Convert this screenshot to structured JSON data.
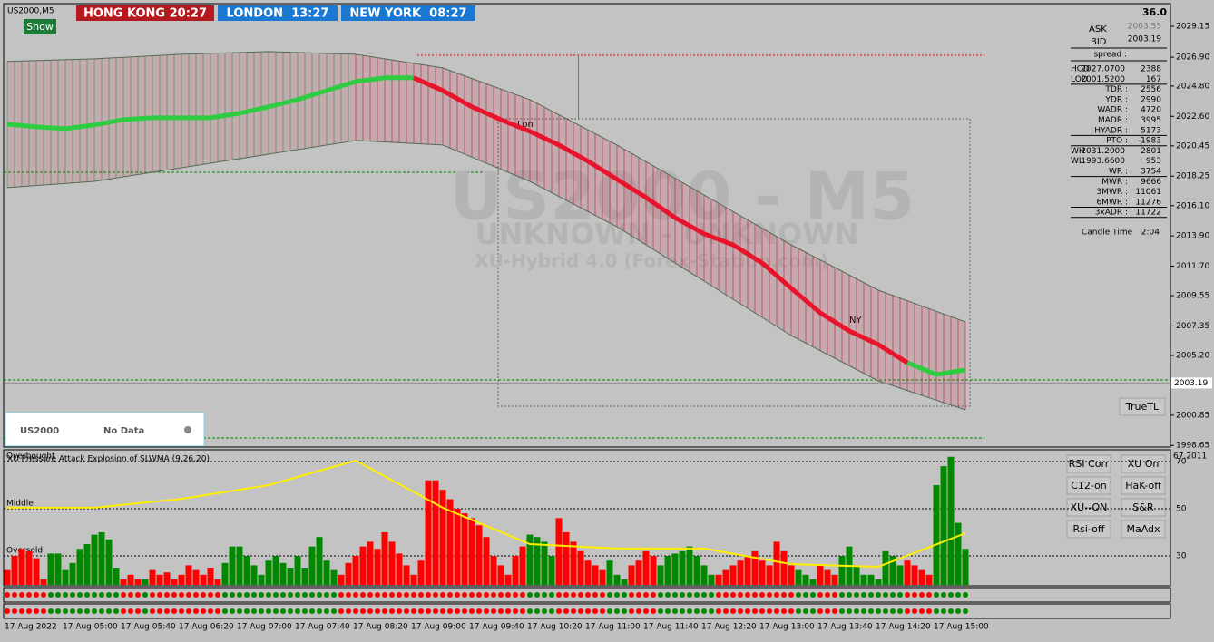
{
  "header": {
    "symbol": "US2000,M5",
    "show_button": "Show",
    "sessions": [
      "HONG KONG 20:27",
      "LONDON  13:27",
      "NEW YORK  08:27"
    ]
  },
  "watermark": {
    "title": "US2000 - M5",
    "subtitle": "UNKNOWN - UNKNOWN",
    "credit": "XU-Hybrid 4.0 (Forex-Station.com)"
  },
  "session_marks": [
    "Lon",
    "NY"
  ],
  "status_panel": {
    "symbol": "US2000",
    "status": "No Data"
  },
  "info_panel": {
    "top": "36.0",
    "ask_label": "ASK",
    "ask": "2003.55",
    "bid_label": "BID",
    "bid": "2003.19",
    "spread_label": "spread :",
    "rows": [
      [
        "HOD",
        "2027.0700",
        "2388"
      ],
      [
        "LOD",
        "2001.5200",
        "167"
      ],
      [
        "TDR :",
        "2556"
      ],
      [
        "YDR :",
        "2990"
      ],
      [
        "WADR :",
        "4720"
      ],
      [
        "MADR :",
        "3995"
      ],
      [
        "HYADR :",
        "5173"
      ],
      [
        "PTO :",
        "-1983"
      ],
      [
        "WH",
        "2031.2000",
        "2801"
      ],
      [
        "WL",
        "1993.6600",
        "953"
      ],
      [
        "WR :",
        "3754"
      ],
      [
        "MWR :",
        "9666"
      ],
      [
        "3MWR :",
        "11061"
      ],
      [
        "6MWR :",
        "11276"
      ],
      [
        "3xADR :",
        "11722"
      ]
    ],
    "candle_time_label": "Candle Time",
    "candle_time": "2:04"
  },
  "buttons": [
    "RSI Corr",
    "XU On",
    "C12-on",
    "HaK-off",
    "XU--ON",
    "S&R",
    "Rsi-off",
    "MaAdx"
  ],
  "trueTL_button": "TrueTL",
  "chart_data": [
    {
      "type": "line",
      "ylim": [
        1998.6,
        2030.8
      ],
      "yticks": [
        2029.15,
        {
          "value": 2026.9,
          "label": "2026.90"
        },
        {
          "value": 2024.8,
          "label": "2024.80"
        },
        {
          "value": 2022.6,
          "label": "2022.60"
        },
        2020.45,
        2018.25,
        {
          "value": 2016.1,
          "label": "2016.10"
        },
        {
          "value": 2013.9,
          "label": "2013.90"
        },
        {
          "value": 2011.7,
          "label": "2011.70"
        },
        2009.55,
        2007.35,
        {
          "value": 2005.2,
          "label": "2005.20"
        },
        2000.85,
        1998.65
      ],
      "current_price": 2003.19,
      "band": {
        "color": "#c8102e",
        "upper": [
          2026.59,
          2026.78,
          2027.11,
          2027.31,
          2027.11,
          2026.12,
          2023.81,
          2020.51,
          2016.88,
          2013.25,
          2009.95,
          2007.64
        ],
        "lower": [
          2017.41,
          2017.87,
          2018.86,
          2019.85,
          2020.84,
          2020.51,
          2017.87,
          2014.57,
          2010.61,
          2006.65,
          2003.35,
          2001.24
        ]
      },
      "series": [
        {
          "color": "#2ecc40",
          "values": [
            2022.03,
            2021.83,
            2021.7,
            2021.97,
            2022.36,
            2022.49,
            2022.49,
            2022.49,
            2022.82,
            2023.29,
            2023.81,
            2024.47,
            2025.13,
            2025.4,
            2025.4,
            null,
            null,
            null,
            null,
            null,
            null,
            null,
            null,
            null,
            null,
            null,
            null,
            null,
            null,
            null,
            null,
            2004.67,
            2003.81,
            2004.14
          ]
        },
        {
          "color": "#e8142c",
          "values": [
            null,
            null,
            null,
            null,
            null,
            null,
            null,
            null,
            null,
            null,
            null,
            null,
            null,
            null,
            2025.4,
            2024.47,
            2023.29,
            2022.36,
            2021.5,
            2020.51,
            2019.33,
            2018.01,
            2016.69,
            2015.23,
            2014.05,
            2013.25,
            2011.93,
            2010.09,
            2008.3,
            2006.98,
            2005.99,
            2004.67,
            null,
            null
          ]
        }
      ]
    },
    {
      "type": "bar",
      "title": "XU Pressure Attack Explosion of SLWMA (9,26,20)",
      "last_value_label": "67.2011",
      "level_labels": [
        "Overbought",
        "Middle",
        "Oversold"
      ],
      "ylim": [
        17.7,
        74.6
      ],
      "yticks": [
        70,
        50,
        30
      ],
      "xtick_labels": [
        "17 Aug 2022",
        "17 Aug 05:00",
        "17 Aug 05:40",
        "17 Aug 06:20",
        "17 Aug 07:00",
        "17 Aug 07:40",
        "17 Aug 08:20",
        "17 Aug 09:00",
        "17 Aug 09:40",
        "17 Aug 10:20",
        "17 Aug 11:00",
        "17 Aug 11:40",
        "17 Aug 12:20",
        "17 Aug 13:00",
        "17 Aug 13:40",
        "17 Aug 14:20",
        "17 Aug 15:00"
      ],
      "values": [
        24,
        30,
        33,
        32,
        29,
        20,
        31,
        31,
        24,
        27,
        33,
        35,
        39,
        40,
        37,
        25,
        20,
        22,
        20,
        20,
        24,
        22,
        23,
        20,
        22,
        26,
        24,
        22,
        25,
        20,
        27,
        34,
        34,
        30,
        26,
        22,
        28,
        30,
        27,
        25,
        30,
        25,
        34,
        38,
        28,
        24,
        22,
        27,
        30,
        34,
        36,
        33,
        40,
        36,
        31,
        26,
        22,
        28,
        62,
        62,
        58,
        54,
        50,
        48,
        46,
        43,
        38,
        30,
        26,
        22,
        30,
        34,
        39,
        38,
        36,
        30,
        46,
        40,
        36,
        32,
        28,
        26,
        24,
        28,
        22,
        20,
        26,
        28,
        32,
        30,
        26,
        30,
        31,
        32,
        34,
        30,
        26,
        22,
        22,
        24,
        26,
        28,
        30,
        32,
        28,
        26,
        36,
        32,
        26,
        24,
        22,
        20,
        26,
        24,
        22,
        30,
        34,
        26,
        22,
        22,
        20,
        32,
        30,
        26,
        28,
        26,
        24,
        22,
        60,
        68,
        72,
        44,
        33
      ],
      "colors": [
        "#f00",
        "#f00",
        "#f00",
        "#f00",
        "#f00",
        "#f00",
        "#080",
        "#080",
        "#080",
        "#080",
        "#080",
        "#080",
        "#080",
        "#080",
        "#080",
        "#080",
        "#f00",
        "#f00",
        "#f00",
        "#080",
        "#f00",
        "#f00",
        "#f00",
        "#f00",
        "#f00",
        "#f00",
        "#f00",
        "#f00",
        "#f00",
        "#f00",
        "#080",
        "#080",
        "#080",
        "#080",
        "#080",
        "#080",
        "#080",
        "#080",
        "#080",
        "#080",
        "#080",
        "#080",
        "#080",
        "#080",
        "#080",
        "#080",
        "#f00",
        "#f00",
        "#f00",
        "#f00",
        "#f00",
        "#f00",
        "#f00",
        "#f00",
        "#f00",
        "#f00",
        "#f00",
        "#f00",
        "#f00",
        "#f00",
        "#f00",
        "#f00",
        "#f00",
        "#f00",
        "#f00",
        "#f00",
        "#f00",
        "#f00",
        "#f00",
        "#f00",
        "#f00",
        "#f00",
        "#080",
        "#080",
        "#080",
        "#080",
        "#f00",
        "#f00",
        "#f00",
        "#f00",
        "#f00",
        "#f00",
        "#f00",
        "#080",
        "#080",
        "#080",
        "#f00",
        "#f00",
        "#f00",
        "#f00",
        "#080",
        "#080",
        "#080",
        "#080",
        "#080",
        "#080",
        "#080",
        "#080",
        "#f00",
        "#f00",
        "#f00",
        "#f00",
        "#f00",
        "#f00",
        "#f00",
        "#f00",
        "#f00",
        "#f00",
        "#f00",
        "#080",
        "#080",
        "#080",
        "#f00",
        "#f00",
        "#f00",
        "#080",
        "#080",
        "#080",
        "#080",
        "#080",
        "#080",
        "#080",
        "#080",
        "#080",
        "#f00",
        "#f00",
        "#f00",
        "#f00",
        "#080",
        "#080",
        "#080",
        "#080",
        "#080"
      ],
      "line": {
        "color": "#ffee00",
        "values": [
          50.4,
          50.4,
          54.2,
          60.0,
          70.4,
          50.4,
          35.0,
          33.1,
          33.1,
          26.5,
          25.4,
          39.6
        ]
      }
    }
  ]
}
